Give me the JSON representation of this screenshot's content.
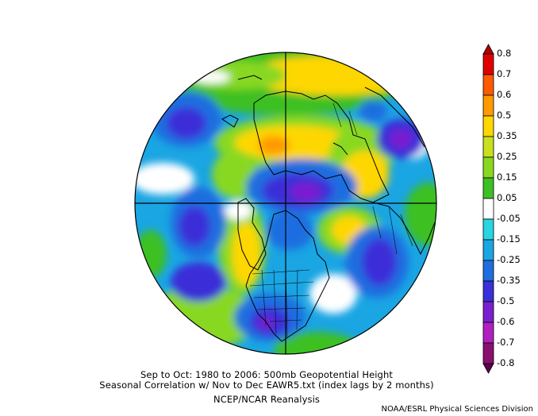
{
  "map": {
    "projection": "north-polar-stereographic",
    "field": "correlation",
    "features": [
      "coastlines",
      "country-borders",
      "us-state-borders",
      "canada-province-borders",
      "graticule-crosshair"
    ]
  },
  "captions": {
    "line1": "Sep to Oct: 1980 to 2006: 500mb Geopotential Height",
    "line2": "Seasonal Correlation w/ Nov to Dec EAWR5.txt (index lags by 2 months)",
    "line3": "NCEP/NCAR Reanalysis",
    "credit": "NOAA/ESRL Physical Sciences Division"
  },
  "colorbar": {
    "labels": [
      "0.8",
      "0.7",
      "0.6",
      "0.5",
      "0.35",
      "0.25",
      "0.15",
      "0.05",
      "-0.05",
      "-0.15",
      "-0.25",
      "-0.35",
      "-0.5",
      "-0.6",
      "-0.7",
      "-0.8"
    ],
    "colors": [
      "#b10000",
      "#e00000",
      "#ff5a00",
      "#ff9a00",
      "#ffd700",
      "#c8e01e",
      "#88d820",
      "#3cc023",
      "#ffffff",
      "#26d6e0",
      "#1aa5e3",
      "#1e6ee0",
      "#3a2fd8",
      "#7a1fd0",
      "#b01fc0",
      "#8a1070",
      "#5a0050"
    ]
  }
}
